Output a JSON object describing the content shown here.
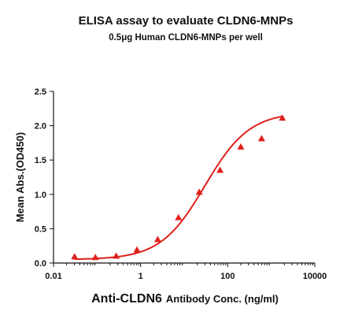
{
  "chart_data": {
    "type": "scatter",
    "title": "ELISA assay to evaluate CLDN6-MNPs",
    "subtitle": "0.5μg Human CLDN6-MNPs per well",
    "xlabel_main": "Anti-CLDN6",
    "xlabel_rest": "Antibody Conc. (ng/ml)",
    "ylabel": "Mean Abs.(OD450)",
    "x_scale": "log",
    "xlim": [
      0.01,
      10000
    ],
    "ylim": [
      0,
      2.5
    ],
    "x_ticks": [
      0.01,
      1,
      100,
      10000
    ],
    "x_tick_labels": [
      "0.01",
      "1",
      "100",
      "10000"
    ],
    "y_ticks": [
      0,
      0.5,
      1,
      1.5,
      2,
      2.5
    ],
    "y_tick_labels": [
      "0.0",
      "0.5",
      "1.0",
      "1.5",
      "2.0",
      "2.5"
    ],
    "grid": false,
    "series": [
      {
        "marker": "triangle",
        "color": "#e0201b",
        "points": [
          {
            "x": 0.0305,
            "y": 0.09
          },
          {
            "x": 0.0915,
            "y": 0.08
          },
          {
            "x": 0.274,
            "y": 0.1
          },
          {
            "x": 0.823,
            "y": 0.19
          },
          {
            "x": 2.47,
            "y": 0.34
          },
          {
            "x": 7.41,
            "y": 0.66
          },
          {
            "x": 22.2,
            "y": 1.03
          },
          {
            "x": 66.7,
            "y": 1.35
          },
          {
            "x": 200,
            "y": 1.69
          },
          {
            "x": 600,
            "y": 1.81
          },
          {
            "x": 1800,
            "y": 2.11
          }
        ]
      }
    ],
    "fit_curve": {
      "model": "4PL",
      "color": "#e0201b",
      "bottom": 0.05,
      "top": 2.2,
      "ec50": 30,
      "hill": 0.85
    }
  }
}
